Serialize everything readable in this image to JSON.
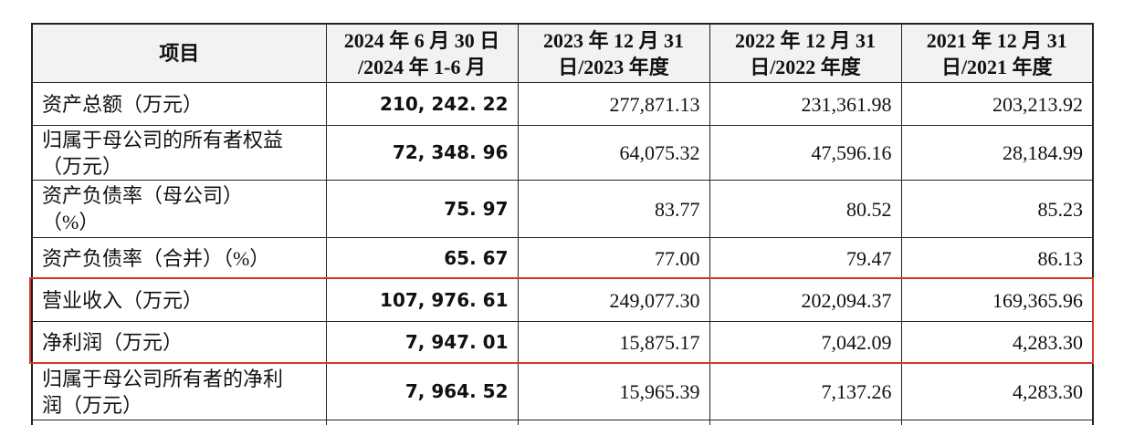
{
  "table": {
    "columns": [
      [
        "项目"
      ],
      [
        "2024 年 6 月 30 日",
        "/2024 年 1-6 月"
      ],
      [
        "2023 年 12 月 31",
        "日/2023 年度"
      ],
      [
        "2022 年 12 月 31",
        "日/2022 年度"
      ],
      [
        "2021 年 12 月 31",
        "日/2021 年度"
      ]
    ],
    "rows": [
      {
        "label": [
          "资产总额（万元）"
        ],
        "values": [
          "210, 242. 22",
          "277,871.13",
          "231,361.98",
          "203,213.92"
        ]
      },
      {
        "label": [
          "归属于母公司的所有者权益",
          "（万元）"
        ],
        "values": [
          "72, 348. 96",
          "64,075.32",
          "47,596.16",
          "28,184.99"
        ]
      },
      {
        "label": [
          "资产负债率（母公司）",
          "（%）"
        ],
        "values": [
          "75. 97",
          "83.77",
          "80.52",
          "85.23"
        ]
      },
      {
        "label": [
          "资产负债率（合并）（%）"
        ],
        "values": [
          "65. 67",
          "77.00",
          "79.47",
          "86.13"
        ]
      },
      {
        "label": [
          "营业收入（万元）"
        ],
        "values": [
          "107, 976. 61",
          "249,077.30",
          "202,094.37",
          "169,365.96"
        ]
      },
      {
        "label": [
          "净利润（万元）"
        ],
        "values": [
          "7, 947. 01",
          "15,875.17",
          "7,042.09",
          "4,283.30"
        ]
      },
      {
        "label": [
          "归属于母公司所有者的净利",
          "润（万元）"
        ],
        "values": [
          "7, 964. 52",
          "15,965.39",
          "7,137.26",
          "4,283.30"
        ]
      }
    ]
  }
}
